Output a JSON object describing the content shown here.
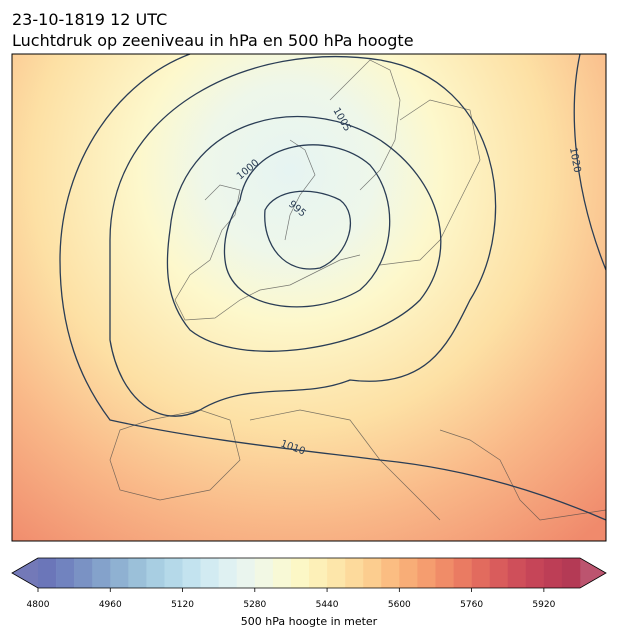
{
  "title": "23-10-1819 12 UTC",
  "subtitle": "Luchtdruk op zeeniveau in hPa en 500 hPa hoogte",
  "contour_labels": [
    995,
    1000,
    1005,
    1010,
    1020
  ],
  "colorbar": {
    "label": "500 hPa hoogte in meter",
    "range": [
      4800,
      6000
    ],
    "ticks": [
      4800,
      4960,
      5120,
      5280,
      5440,
      5600,
      5760,
      5920
    ],
    "colors": [
      "#6b76b9",
      "#7183bf",
      "#7a92c4",
      "#84a2cb",
      "#8fb1d2",
      "#9bc0d9",
      "#a8cee2",
      "#b5d9e9",
      "#c3e3ef",
      "#d2ebf2",
      "#dff1f2",
      "#eaf5ee",
      "#f2f8e4",
      "#f8f9d6",
      "#fcf7c6",
      "#fdf0b8",
      "#fde6aa",
      "#fdda9c",
      "#fccd8f",
      "#fbbd82",
      "#f8ad77",
      "#f59d6f",
      "#f08c68",
      "#ea7b62",
      "#e26b5e",
      "#d95c5c",
      "#cf4f5a",
      "#c64558",
      "#bd3e56",
      "#b43a55"
    ],
    "under_color": "#5b62ab",
    "over_color": "#b03656"
  }
}
